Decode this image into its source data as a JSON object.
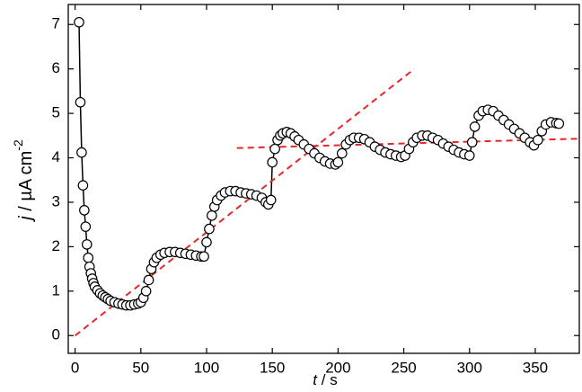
{
  "chart_data": {
    "type": "scatter",
    "xlabel": {
      "italic": "t",
      "rest": " / s"
    },
    "ylabel": {
      "italic": "j",
      "rest": " / µA cm",
      "sup": "-2"
    },
    "xlim": [
      -5.2,
      383.5
    ],
    "ylim": [
      -0.4,
      7.45
    ],
    "xticks": [
      0,
      50,
      100,
      150,
      200,
      250,
      300,
      350
    ],
    "yticks": [
      0,
      1,
      2,
      3,
      4,
      5,
      6,
      7
    ],
    "marker_color": "#000000",
    "marker_fill": "#ffffff",
    "x": [
      3,
      4,
      5,
      6,
      7,
      8,
      9,
      10,
      11,
      12,
      13,
      14,
      15,
      17,
      19,
      21,
      23,
      25,
      27,
      30,
      33,
      36,
      39,
      42,
      45,
      48,
      50,
      52,
      54,
      56,
      58,
      60,
      62,
      65,
      68,
      72,
      76,
      80,
      84,
      88,
      92,
      96,
      98,
      100,
      102,
      104,
      106,
      108,
      111,
      114,
      118,
      122,
      126,
      130,
      134,
      138,
      142,
      145,
      147,
      149,
      150,
      152,
      154,
      156,
      158,
      161,
      164,
      167,
      170,
      174,
      178,
      182,
      186,
      190,
      194,
      198,
      200,
      203,
      206,
      209,
      212,
      216,
      220,
      224,
      228,
      232,
      236,
      240,
      244,
      248,
      251,
      254,
      257,
      260,
      264,
      268,
      272,
      276,
      280,
      284,
      288,
      292,
      296,
      300,
      302,
      304,
      307,
      310,
      314,
      318,
      322,
      326,
      330,
      334,
      338,
      342,
      346,
      349,
      352,
      355,
      358,
      362,
      366,
      368
    ],
    "values": [
      7.05,
      5.25,
      4.12,
      3.38,
      2.82,
      2.45,
      2.05,
      1.75,
      1.55,
      1.4,
      1.28,
      1.18,
      1.1,
      1.02,
      0.95,
      0.9,
      0.86,
      0.82,
      0.78,
      0.75,
      0.72,
      0.7,
      0.68,
      0.68,
      0.7,
      0.72,
      0.75,
      0.85,
      1.0,
      1.25,
      1.5,
      1.65,
      1.75,
      1.82,
      1.86,
      1.88,
      1.88,
      1.86,
      1.84,
      1.82,
      1.8,
      1.78,
      1.78,
      2.1,
      2.4,
      2.7,
      2.9,
      3.05,
      3.15,
      3.22,
      3.25,
      3.25,
      3.22,
      3.2,
      3.18,
      3.15,
      3.1,
      3.0,
      2.95,
      3.05,
      3.9,
      4.2,
      4.4,
      4.5,
      4.55,
      4.58,
      4.55,
      4.48,
      4.4,
      4.3,
      4.2,
      4.1,
      4.0,
      3.92,
      3.87,
      3.85,
      3.9,
      4.1,
      4.3,
      4.4,
      4.45,
      4.45,
      4.42,
      4.35,
      4.25,
      4.18,
      4.12,
      4.08,
      4.05,
      4.02,
      4.05,
      4.2,
      4.35,
      4.45,
      4.5,
      4.5,
      4.45,
      4.4,
      4.32,
      4.25,
      4.18,
      4.12,
      4.08,
      4.05,
      4.35,
      4.7,
      4.95,
      5.05,
      5.08,
      5.05,
      4.95,
      4.85,
      4.75,
      4.65,
      4.55,
      4.45,
      4.35,
      4.28,
      4.4,
      4.6,
      4.75,
      4.8,
      4.78,
      4.77
    ],
    "fit_lines": [
      {
        "color": "#e8262a",
        "x": [
          0,
          258
        ],
        "values": [
          0,
          6.0
        ]
      },
      {
        "color": "#e8262a",
        "x": [
          123,
          383
        ],
        "values": [
          4.22,
          4.43
        ]
      }
    ]
  }
}
